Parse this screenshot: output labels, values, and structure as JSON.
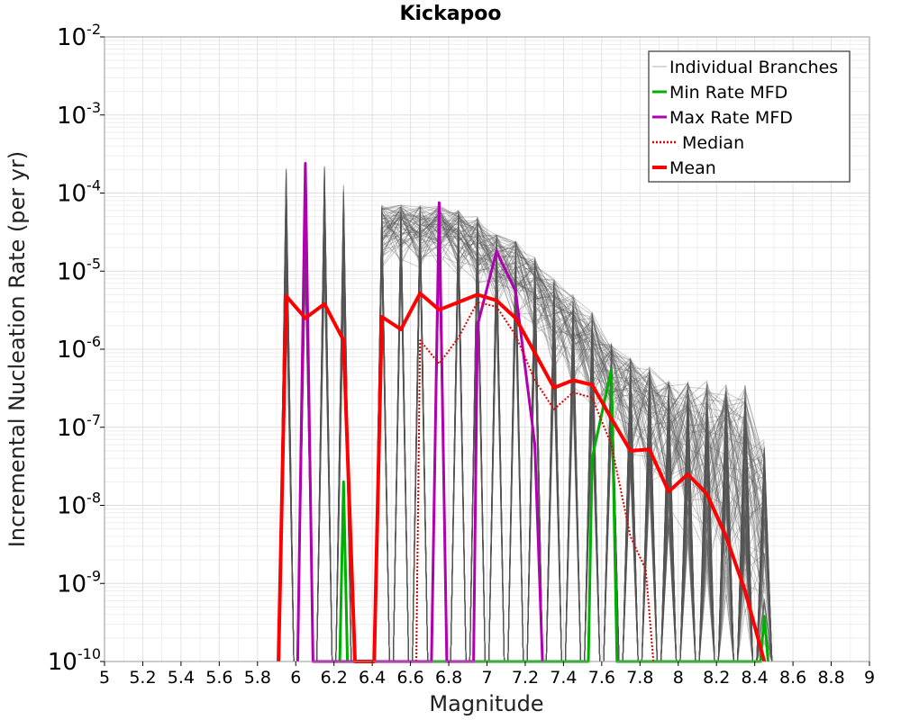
{
  "chart_data": {
    "type": "line",
    "title": "Kickapoo",
    "xlabel": "Magnitude",
    "ylabel": "Incremental Nucleation Rate (per yr)",
    "xlim": [
      5,
      9
    ],
    "ylim": [
      1e-10,
      0.01
    ],
    "yscale": "log",
    "grid": true,
    "legend_position": "top-right",
    "x_ticks": [
      "5",
      "5.2",
      "5.4",
      "5.6",
      "5.8",
      "6",
      "6.2",
      "6.4",
      "6.6",
      "6.8",
      "7",
      "7.2",
      "7.4",
      "7.6",
      "7.8",
      "8",
      "8.2",
      "8.4",
      "8.6",
      "8.8",
      "9"
    ],
    "y_ticks": [
      {
        "base": "10",
        "exp": "-2"
      },
      {
        "base": "10",
        "exp": "-3"
      },
      {
        "base": "10",
        "exp": "-4"
      },
      {
        "base": "10",
        "exp": "-5"
      },
      {
        "base": "10",
        "exp": "-6"
      },
      {
        "base": "10",
        "exp": "-7"
      },
      {
        "base": "10",
        "exp": "-8"
      },
      {
        "base": "10",
        "exp": "-9"
      },
      {
        "base": "10",
        "exp": "-10"
      }
    ],
    "individual_branches_envelope": {
      "x": [
        5.95,
        6.05,
        6.15,
        6.25,
        6.45,
        6.55,
        6.65,
        6.75,
        6.85,
        6.95,
        7.05,
        7.15,
        7.25,
        7.35,
        7.45,
        7.55,
        7.65,
        7.75,
        7.85,
        7.95,
        8.05,
        8.15,
        8.25,
        8.35,
        8.45
      ],
      "y_max": [
        0.00022,
        0.00022,
        0.00022,
        0.00014,
        7e-05,
        7e-05,
        7e-05,
        7e-05,
        6e-05,
        5e-05,
        3e-05,
        2.5e-05,
        1.5e-05,
        8e-06,
        5e-06,
        3e-06,
        1.2e-06,
        8e-07,
        6e-07,
        4e-07,
        4e-07,
        4e-07,
        3.5e-07,
        3.5e-07,
        7e-08
      ],
      "y_min": [
        5e-06,
        5e-06,
        5e-06,
        2e-06,
        1e-05,
        1e-05,
        1e-05,
        1e-05,
        8e-06,
        5e-06,
        3e-06,
        2e-06,
        1e-06,
        4e-07,
        2e-07,
        1e-07,
        5e-08,
        2e-08,
        1e-08,
        5e-09,
        3e-09,
        1e-09,
        5e-10,
        2e-10,
        1e-10
      ]
    },
    "series": [
      {
        "name": "Individual Branches",
        "color": "#b0b0b0",
        "style": "thin"
      },
      {
        "name": "Min Rate MFD",
        "color": "#00b000",
        "style": "solid",
        "points": [
          [
            6.23,
            1e-10
          ],
          [
            6.25,
            2e-08
          ],
          [
            6.27,
            1e-10
          ],
          [
            7.53,
            1e-10
          ],
          [
            7.55,
            4e-08
          ],
          [
            7.65,
            5.5e-07
          ],
          [
            7.68,
            1e-10
          ],
          [
            8.43,
            1e-10
          ],
          [
            8.45,
            3.8e-10
          ],
          [
            8.47,
            1e-10
          ]
        ]
      },
      {
        "name": "Max Rate MFD",
        "color": "#b000b0",
        "style": "solid",
        "points": [
          [
            6.01,
            1e-10
          ],
          [
            6.05,
            0.00024
          ],
          [
            6.09,
            1e-10
          ],
          [
            6.71,
            1e-10
          ],
          [
            6.75,
            7.5e-05
          ],
          [
            6.79,
            1e-10
          ],
          [
            6.93,
            1e-10
          ],
          [
            6.95,
            2e-06
          ],
          [
            7.05,
            1.8e-05
          ],
          [
            7.15,
            5.5e-06
          ],
          [
            7.25,
            6e-08
          ],
          [
            7.29,
            1e-10
          ]
        ]
      },
      {
        "name": "Median",
        "color": "#e00000",
        "style": "dotted",
        "points": [
          [
            6.63,
            1e-10
          ],
          [
            6.65,
            1.3e-06
          ],
          [
            6.75,
            6.5e-07
          ],
          [
            6.85,
            1.4e-06
          ],
          [
            6.95,
            4e-06
          ],
          [
            7.05,
            3.5e-06
          ],
          [
            7.15,
            1.5e-06
          ],
          [
            7.25,
            4e-07
          ],
          [
            7.35,
            1.7e-07
          ],
          [
            7.45,
            2.8e-07
          ],
          [
            7.55,
            2.4e-07
          ],
          [
            7.65,
            6e-08
          ],
          [
            7.75,
            4e-09
          ],
          [
            7.83,
            1.5e-09
          ],
          [
            7.87,
            1e-10
          ]
        ]
      },
      {
        "name": "Mean",
        "color": "#ff0000",
        "style": "thick",
        "points": [
          [
            5.91,
            1e-10
          ],
          [
            5.95,
            4.8e-06
          ],
          [
            6.05,
            2.5e-06
          ],
          [
            6.15,
            3.8e-06
          ],
          [
            6.25,
            1.3e-06
          ],
          [
            6.31,
            1e-10
          ],
          [
            6.41,
            1e-10
          ],
          [
            6.45,
            2.6e-06
          ],
          [
            6.55,
            1.8e-06
          ],
          [
            6.65,
            5.2e-06
          ],
          [
            6.75,
            3.2e-06
          ],
          [
            6.85,
            4e-06
          ],
          [
            6.95,
            5e-06
          ],
          [
            7.05,
            4.2e-06
          ],
          [
            7.15,
            2.5e-06
          ],
          [
            7.25,
            9e-07
          ],
          [
            7.35,
            3.2e-07
          ],
          [
            7.45,
            4e-07
          ],
          [
            7.55,
            3.5e-07
          ],
          [
            7.65,
            1.3e-07
          ],
          [
            7.75,
            5e-08
          ],
          [
            7.85,
            5.2e-08
          ],
          [
            7.95,
            1.5e-08
          ],
          [
            8.05,
            2.5e-08
          ],
          [
            8.15,
            1.4e-08
          ],
          [
            8.25,
            4e-09
          ],
          [
            8.35,
            8e-10
          ],
          [
            8.45,
            1e-10
          ]
        ]
      }
    ]
  }
}
